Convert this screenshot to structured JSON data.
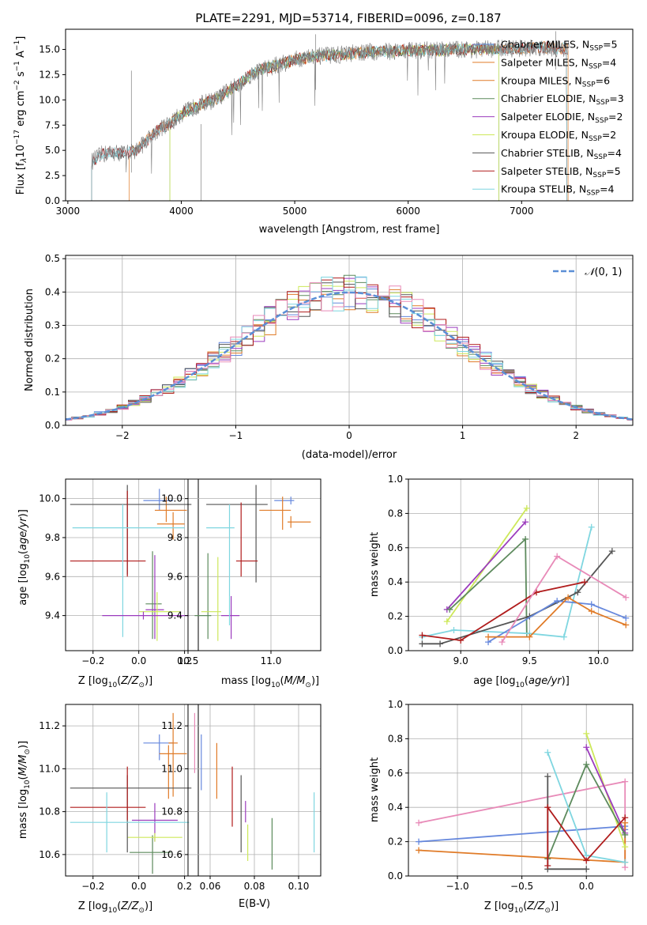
{
  "figure_title": "PLATE=2291, MJD=53714, FIBERID=0096, z=0.187",
  "colors": {
    "Chabrier MILES": "#6688dd",
    "Salpeter MILES": "#e07b28",
    "Kroupa MILES": "#e07b28",
    "Chabrier ELODIE": "#5d8a5d",
    "Salpeter ELODIE": "#9b3bbd",
    "Kroupa ELODIE": "#cde85a",
    "Chabrier STELIB": "#555555",
    "Salpeter STELIB": "#b01c1c",
    "Kroupa STELIB": "#7fd6e0",
    "pink": "#e88ab8",
    "data": "#808080",
    "normal": "#5b8fd6"
  },
  "chart_data": [
    {
      "type": "line",
      "title": "PLATE=2291, MJD=53714, FIBERID=0096, z=0.187",
      "xlabel": "wavelength [Angstrom, rest frame]",
      "ylabel": "Flux [f_λ 10^-17 erg cm^-2 s^-1 A^-1]",
      "xlim": [
        2980,
        7980
      ],
      "ylim": [
        0,
        17
      ],
      "xticks": [
        3000,
        4000,
        5000,
        6000,
        7000
      ],
      "yticks": [
        0.0,
        2.5,
        5.0,
        7.5,
        10.0,
        12.5,
        15.0
      ],
      "grid": false,
      "legend_position": "right",
      "legend": [
        {
          "name": "Chabrier MILES, N",
          "sub": "SSP",
          "post": "=5"
        },
        {
          "name": "Salpeter MILES, N",
          "sub": "SSP",
          "post": "=4"
        },
        {
          "name": "Kroupa MILES, N",
          "sub": "SSP",
          "post": "=6"
        },
        {
          "name": "Chabrier ELODIE, N",
          "sub": "SSP",
          "post": "=3"
        },
        {
          "name": "Salpeter ELODIE, N",
          "sub": "SSP",
          "post": "=2"
        },
        {
          "name": "Kroupa ELODIE, N",
          "sub": "SSP",
          "post": "=2"
        },
        {
          "name": "Chabrier STELIB, N",
          "sub": "SSP",
          "post": "=4"
        },
        {
          "name": "Salpeter STELIB, N",
          "sub": "SSP",
          "post": "=5"
        },
        {
          "name": "Kroupa STELIB, N",
          "sub": "SSP",
          "post": "=4"
        }
      ],
      "data_range": [
        3210,
        7420
      ],
      "continuum": {
        "wavelength": [
          3210,
          3300,
          3400,
          3500,
          3600,
          3700,
          3800,
          3900,
          4000,
          4100,
          4200,
          4300,
          4400,
          4500,
          4600,
          4700,
          4800,
          4900,
          5000,
          5200,
          5400,
          5600,
          5800,
          6000,
          6200,
          6400,
          6600,
          6800,
          7000,
          7200,
          7400
        ],
        "flux": [
          3.9,
          4.6,
          4.8,
          4.7,
          5.0,
          6.0,
          7.1,
          7.6,
          8.6,
          9.2,
          9.7,
          10.0,
          10.8,
          11.5,
          12.4,
          13.0,
          13.3,
          13.6,
          14.0,
          14.3,
          14.5,
          14.7,
          14.8,
          14.9,
          14.9,
          15.0,
          15.0,
          15.1,
          15.1,
          15.2,
          15.1
        ]
      },
      "model_cutoffs": {
        "Chabrier MILES": [
          3540,
          7410
        ],
        "Salpeter MILES": [
          3540,
          7410
        ],
        "Kroupa MILES": [
          3540,
          7410
        ],
        "Chabrier ELODIE": [
          3900,
          6800
        ],
        "Salpeter ELODIE": [
          3900,
          6800
        ],
        "Kroupa ELODIE": [
          3900,
          6800
        ],
        "Chabrier STELIB": [
          3210,
          7400
        ],
        "Salpeter STELIB": [
          3210,
          7400
        ],
        "Kroupa STELIB": [
          3210,
          7400
        ]
      }
    },
    {
      "type": "line",
      "xlabel": "(data-model)/error",
      "ylabel": "Normed distribution",
      "xlim": [
        -2.5,
        2.5
      ],
      "ylim": [
        0,
        0.51
      ],
      "xticks": [
        -2,
        -1,
        0,
        1,
        2
      ],
      "yticks": [
        0.0,
        0.1,
        0.2,
        0.3,
        0.4,
        0.5
      ],
      "grid": true,
      "legend_position": "top-right",
      "legend": [
        {
          "name": "N(0, 1)"
        }
      ],
      "histogram_bin_width": 0.1,
      "gaussian": {
        "mean": 0,
        "sigma": 1
      }
    },
    {
      "type": "scatter",
      "xlabel": "Z [log10(Z/Z⊙)]",
      "ylabel": "age [log10(age/yr)]",
      "xlim": [
        -0.32,
        0.26
      ],
      "ylim": [
        9.22,
        10.1
      ],
      "xticks": [
        -0.2,
        0.0,
        0.2
      ],
      "xticklabels": [
        "−0.2",
        "0.0",
        "0.2"
      ],
      "yticks": [
        9.4,
        9.6,
        9.8,
        10.0
      ],
      "grid": true,
      "errorbars": [
        {
          "model": "Chabrier MILES",
          "x": 0.09,
          "xerr": [
            0.07,
            0.06
          ],
          "y": 9.99,
          "yerr": [
            0.05,
            0.06
          ]
        },
        {
          "model": "Salpeter MILES",
          "x": 0.12,
          "xerr": [
            0.05,
            0.09
          ],
          "y": 9.94,
          "yerr": [
            0.06,
            0.07
          ]
        },
        {
          "model": "Kroupa MILES",
          "x": 0.15,
          "xerr": [
            0.07,
            0.05
          ],
          "y": 9.87,
          "yerr": [
            0.08,
            0.06
          ]
        },
        {
          "model": "Chabrier ELODIE",
          "x": 0.06,
          "xerr": [
            0.03,
            0.04
          ],
          "y": 9.46,
          "yerr": [
            0.18,
            0.27
          ]
        },
        {
          "model": "Salpeter ELODIE",
          "x": 0.07,
          "xerr": [
            0.04,
            0.04
          ],
          "y": 9.43,
          "yerr": [
            0.15,
            0.28
          ]
        },
        {
          "model": "Kroupa ELODIE",
          "x": 0.08,
          "xerr": [
            0.08,
            0.1
          ],
          "y": 9.42,
          "yerr": [
            0.15,
            0.1
          ]
        },
        {
          "model": "Chabrier STELIB",
          "x": -0.05,
          "xerr": [
            0.25,
            0.28
          ],
          "y": 9.97,
          "yerr": [
            0.36,
            0.1
          ]
        },
        {
          "model": "Salpeter STELIB",
          "x": -0.05,
          "xerr": [
            0.25,
            0.08
          ],
          "y": 9.68,
          "yerr": [
            0.08,
            0.36
          ]
        },
        {
          "model": "Kroupa STELIB",
          "x": -0.07,
          "xerr": [
            0.22,
            0.27
          ],
          "y": 9.85,
          "yerr": [
            0.56,
            0.12
          ]
        },
        {
          "model": "Salpeter ELODIE",
          "x": 0.02,
          "xerr": [
            0.18,
            0.2
          ],
          "y": 9.4,
          "yerr": [
            0.02,
            0.02
          ]
        }
      ]
    },
    {
      "type": "scatter",
      "xlabel": "mass [log10(M/M⊙)]",
      "xlim": [
        10.5,
        11.3
      ],
      "ylim": [
        9.22,
        10.1
      ],
      "xticks": [
        10.5,
        11.0
      ],
      "yticks": [
        9.4,
        9.6,
        9.8,
        10.0
      ],
      "grid": true,
      "errorbars": [
        {
          "model": "Chabrier MILES",
          "x": 11.12,
          "xerr": [
            0.1,
            0.02
          ],
          "y": 9.99,
          "yerr": [
            0.02,
            0.02
          ]
        },
        {
          "model": "Salpeter MILES",
          "x": 11.07,
          "xerr": [
            0.14,
            0.05
          ],
          "y": 9.94,
          "yerr": [
            0.1,
            0.07
          ]
        },
        {
          "model": "Kroupa MILES",
          "x": 11.12,
          "xerr": [
            0.02,
            0.12
          ],
          "y": 9.88,
          "yerr": [
            0.03,
            0.03
          ]
        },
        {
          "model": "Chabrier ELODIE",
          "x": 10.62,
          "xerr": [
            0.08,
            0.02
          ],
          "y": 9.4,
          "yerr": [
            0.12,
            0.32
          ]
        },
        {
          "model": "Salpeter ELODIE",
          "x": 10.76,
          "xerr": [
            0.06,
            0.05
          ],
          "y": 9.4,
          "yerr": [
            0.12,
            0.1
          ]
        },
        {
          "model": "Kroupa ELODIE",
          "x": 10.68,
          "xerr": [
            0.1,
            0.02
          ],
          "y": 9.42,
          "yerr": [
            0.15,
            0.28
          ]
        },
        {
          "model": "Chabrier STELIB",
          "x": 10.91,
          "xerr": [
            0.3,
            0.07
          ],
          "y": 9.97,
          "yerr": [
            0.4,
            0.1
          ]
        },
        {
          "model": "Salpeter STELIB",
          "x": 10.82,
          "xerr": [
            0.03,
            0.1
          ],
          "y": 9.68,
          "yerr": [
            0.08,
            0.3
          ]
        },
        {
          "model": "Kroupa STELIB",
          "x": 10.75,
          "xerr": [
            0.14,
            0.03
          ],
          "y": 9.85,
          "yerr": [
            0.5,
            0.12
          ]
        }
      ]
    },
    {
      "type": "line",
      "xlabel": "age [log10(age/yr)]",
      "ylabel": "mass weight",
      "xlim": [
        8.62,
        10.25
      ],
      "ylim": [
        0,
        1
      ],
      "xticks": [
        9.0,
        9.5,
        10.0
      ],
      "yticks": [
        0.0,
        0.2,
        0.4,
        0.6,
        0.8,
        1.0
      ],
      "grid": true,
      "series": [
        {
          "model": "Kroupa ELODIE",
          "x": [
            8.9,
            9.48
          ],
          "y": [
            0.17,
            0.83
          ]
        },
        {
          "model": "Salpeter ELODIE",
          "x": [
            8.9,
            9.47
          ],
          "y": [
            0.24,
            0.75
          ]
        },
        {
          "model": "Chabrier ELODIE",
          "x": [
            8.92,
            9.47,
            9.48
          ],
          "y": [
            0.24,
            0.65,
            0.1
          ]
        },
        {
          "model": "Kroupa STELIB",
          "x": [
            8.72,
            8.95,
            9.5,
            9.75,
            9.95
          ],
          "y": [
            0.08,
            0.12,
            0.1,
            0.08,
            0.72
          ]
        },
        {
          "model": "Chabrier STELIB",
          "x": [
            8.72,
            8.85,
            9.5,
            9.85,
            10.1
          ],
          "y": [
            0.04,
            0.04,
            0.2,
            0.34,
            0.58
          ]
        },
        {
          "model": "Salpeter STELIB",
          "x": [
            8.72,
            9.0,
            9.55,
            9.9
          ],
          "y": [
            0.09,
            0.06,
            0.34,
            0.4
          ]
        },
        {
          "model": "Chabrier MILES",
          "x": [
            9.2,
            9.7,
            9.95,
            10.2
          ],
          "y": [
            0.05,
            0.29,
            0.27,
            0.19
          ]
        },
        {
          "model": "Salpeter MILES",
          "x": [
            9.2,
            9.5,
            9.78,
            9.95,
            10.2
          ],
          "y": [
            0.08,
            0.08,
            0.31,
            0.23,
            0.15
          ]
        },
        {
          "model": "pink",
          "x": [
            9.3,
            9.7,
            10.2
          ],
          "y": [
            0.05,
            0.55,
            0.31
          ]
        }
      ]
    },
    {
      "type": "scatter",
      "xlabel": "Z [log10(Z/Z⊙)]",
      "ylabel": "mass [log10(M/M⊙)]",
      "xlim": [
        -0.32,
        0.26
      ],
      "ylim": [
        10.5,
        11.3
      ],
      "xticks": [
        -0.2,
        0.0,
        0.2
      ],
      "xticklabels": [
        "−0.2",
        "0.0",
        "0.2"
      ],
      "yticks": [
        10.6,
        10.8,
        11.0,
        11.2
      ],
      "grid": true,
      "errorbars": [
        {
          "model": "Chabrier MILES",
          "x": 0.09,
          "xerr": [
            0.07,
            0.06
          ],
          "y": 11.12,
          "yerr": [
            0.08,
            0.04
          ]
        },
        {
          "model": "Salpeter MILES",
          "x": 0.13,
          "xerr": [
            0.04,
            0.08
          ],
          "y": 11.07,
          "yerr": [
            0.21,
            0.04
          ]
        },
        {
          "model": "Kroupa MILES",
          "x": 0.15,
          "xerr": [
            0.02,
            0.02
          ],
          "y": 11.12,
          "yerr": [
            0.25,
            0.14
          ]
        },
        {
          "model": "Chabrier ELODIE",
          "x": 0.06,
          "xerr": [
            0.1,
            0.08
          ],
          "y": 10.61,
          "yerr": [
            0.1,
            0.08
          ]
        },
        {
          "model": "Salpeter ELODIE",
          "x": 0.07,
          "xerr": [
            0.1,
            0.1
          ],
          "y": 10.76,
          "yerr": [
            0.1,
            0.08
          ]
        },
        {
          "model": "Kroupa ELODIE",
          "x": 0.07,
          "xerr": [
            0.12,
            0.12
          ],
          "y": 10.68,
          "yerr": [
            0.02,
            0.02
          ]
        },
        {
          "model": "Chabrier STELIB",
          "x": -0.05,
          "xerr": [
            0.25,
            0.28
          ],
          "y": 10.91,
          "yerr": [
            0.3,
            0.06
          ]
        },
        {
          "model": "Salpeter STELIB",
          "x": -0.05,
          "xerr": [
            0.25,
            0.08
          ],
          "y": 10.82,
          "yerr": [
            0.06,
            0.19
          ]
        },
        {
          "model": "Kroupa STELIB",
          "x": -0.14,
          "xerr": [
            0.16,
            0.36
          ],
          "y": 10.75,
          "yerr": [
            0.14,
            0.14
          ]
        }
      ]
    },
    {
      "type": "scatter",
      "xlabel": "E(B-V)",
      "xlim": [
        0.05,
        0.11
      ],
      "ylim": [
        10.5,
        11.3
      ],
      "xticks": [
        0.06,
        0.08,
        0.1
      ],
      "yticks": [
        10.6,
        10.8,
        11.0,
        11.2
      ],
      "grid": true,
      "errorbars": [
        {
          "model": "pink",
          "x": 0.053,
          "y": 11.12,
          "yerr": [
            0.14,
            0.14
          ]
        },
        {
          "model": "Chabrier MILES",
          "x": 0.056,
          "y": 11.12,
          "yerr": [
            0.22,
            0.04
          ]
        },
        {
          "model": "Salpeter MILES",
          "x": 0.063,
          "y": 11.01,
          "yerr": [
            0.15,
            0.11
          ]
        },
        {
          "model": "Salpeter STELIB",
          "x": 0.07,
          "y": 10.88,
          "yerr": [
            0.15,
            0.13
          ]
        },
        {
          "model": "Salpeter ELODIE",
          "x": 0.076,
          "y": 10.8,
          "yerr": [
            0.05,
            0.05
          ]
        },
        {
          "model": "Kroupa ELODIE",
          "x": 0.077,
          "y": 10.66,
          "yerr": [
            0.09,
            0.08
          ]
        },
        {
          "model": "Chabrier STELIB",
          "x": 0.074,
          "y": 10.8,
          "yerr": [
            0.19,
            0.17
          ]
        },
        {
          "model": "Chabrier ELODIE",
          "x": 0.088,
          "y": 10.65,
          "yerr": [
            0.12,
            0.12
          ]
        },
        {
          "model": "Kroupa STELIB",
          "x": 0.107,
          "y": 10.75,
          "yerr": [
            0.14,
            0.14
          ]
        }
      ]
    },
    {
      "type": "line",
      "xlabel": "Z [log10(Z/Z⊙)]",
      "ylabel": "mass weight",
      "xlim": [
        -1.38,
        0.36
      ],
      "ylim": [
        0,
        1
      ],
      "xticks": [
        -1.0,
        -0.5,
        0.0
      ],
      "xticklabels": [
        "−1.0",
        "−0.5",
        "0.0"
      ],
      "yticks": [
        0.0,
        0.2,
        0.4,
        0.6,
        0.8,
        1.0
      ],
      "grid": true,
      "series": [
        {
          "model": "pink",
          "x": [
            -1.3,
            0.3,
            0.3
          ],
          "y": [
            0.31,
            0.55,
            0.05
          ]
        },
        {
          "model": "Chabrier MILES",
          "x": [
            -1.3,
            0.3,
            0.3
          ],
          "y": [
            0.2,
            0.29,
            0.27
          ]
        },
        {
          "model": "Salpeter MILES",
          "x": [
            -1.3,
            0.3,
            0.3
          ],
          "y": [
            0.15,
            0.08,
            0.31
          ]
        },
        {
          "model": "Kroupa ELODIE",
          "x": [
            0.0,
            0.3
          ],
          "y": [
            0.83,
            0.17
          ]
        },
        {
          "model": "Salpeter ELODIE",
          "x": [
            0.0,
            0.3
          ],
          "y": [
            0.75,
            0.25
          ]
        },
        {
          "model": "Chabrier ELODIE",
          "x": [
            -0.3,
            0.0,
            0.3
          ],
          "y": [
            0.1,
            0.65,
            0.24
          ]
        },
        {
          "model": "Kroupa STELIB",
          "x": [
            -0.3,
            0.0,
            0.3
          ],
          "y": [
            0.72,
            0.12,
            0.08
          ]
        },
        {
          "model": "Chabrier STELIB",
          "x": [
            -0.3,
            -0.3,
            0.0
          ],
          "y": [
            0.58,
            0.04,
            0.04
          ]
        },
        {
          "model": "Salpeter STELIB",
          "x": [
            -0.3,
            -0.3,
            0.0,
            0.3
          ],
          "y": [
            0.06,
            0.4,
            0.09,
            0.34
          ]
        }
      ]
    }
  ]
}
